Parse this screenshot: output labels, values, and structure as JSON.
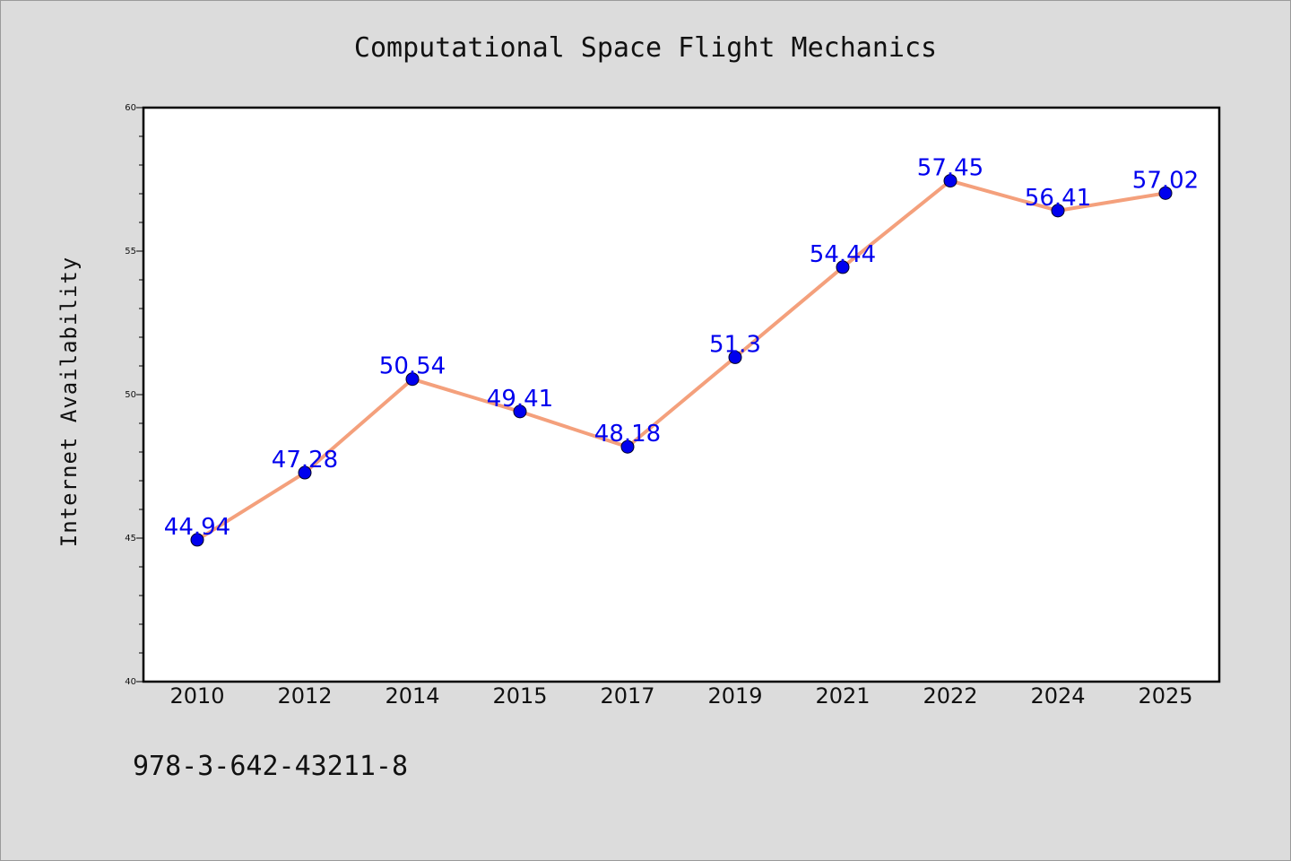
{
  "isbn": "978-3-642-43211-8",
  "chart_data": {
    "type": "line",
    "title": "Computational Space Flight Mechanics",
    "xlabel": "",
    "ylabel": "Internet Availability",
    "categories": [
      "2010",
      "2012",
      "2014",
      "2015",
      "2017",
      "2019",
      "2021",
      "2022",
      "2024",
      "2025"
    ],
    "series": [
      {
        "values": [
          44.94,
          47.28,
          50.54,
          49.41,
          48.18,
          51.3,
          54.44,
          57.45,
          56.41,
          57.02
        ],
        "labels": [
          "44.94",
          "47.28",
          "50.54",
          "49.41",
          "48.18",
          "51.3",
          "54.44",
          "57.45",
          "56.41",
          "57.02"
        ]
      }
    ],
    "ylim": [
      40,
      60
    ],
    "yticks": [
      "40",
      "45",
      "50",
      "55",
      "60"
    ],
    "grid": false,
    "legend": "none",
    "colors": {
      "line": "#f4a07c",
      "marker": "#0000ee",
      "label": "#0000ee",
      "plot_background": "#ffffff",
      "page_background": "#dcdcdc"
    }
  }
}
